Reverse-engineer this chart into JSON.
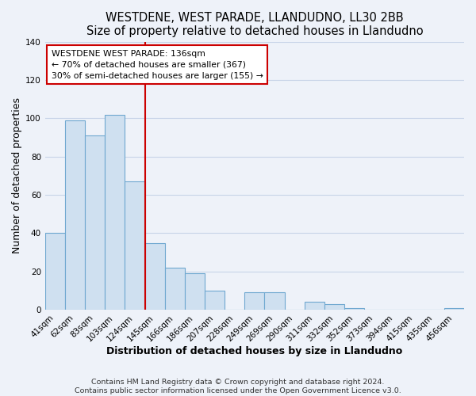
{
  "title": "WESTDENE, WEST PARADE, LLANDUDNO, LL30 2BB",
  "subtitle": "Size of property relative to detached houses in Llandudno",
  "xlabel": "Distribution of detached houses by size in Llandudno",
  "ylabel": "Number of detached properties",
  "bar_labels": [
    "41sqm",
    "62sqm",
    "83sqm",
    "103sqm",
    "124sqm",
    "145sqm",
    "166sqm",
    "186sqm",
    "207sqm",
    "228sqm",
    "249sqm",
    "269sqm",
    "290sqm",
    "311sqm",
    "332sqm",
    "352sqm",
    "373sqm",
    "394sqm",
    "415sqm",
    "435sqm",
    "456sqm"
  ],
  "bar_values": [
    40,
    99,
    91,
    102,
    67,
    35,
    22,
    19,
    10,
    0,
    9,
    9,
    0,
    4,
    3,
    1,
    0,
    0,
    0,
    0,
    1
  ],
  "bar_color": "#cfe0f0",
  "bar_edge_color": "#6fa8d0",
  "vline_x": 5.0,
  "vline_color": "#cc0000",
  "annotation_title": "WESTDENE WEST PARADE: 136sqm",
  "annotation_line1": "← 70% of detached houses are smaller (367)",
  "annotation_line2": "30% of semi-detached houses are larger (155) →",
  "annotation_box_facecolor": "#ffffff",
  "annotation_box_edgecolor": "#cc0000",
  "ylim": [
    0,
    140
  ],
  "yticks": [
    0,
    20,
    40,
    60,
    80,
    100,
    120,
    140
  ],
  "footer_line1": "Contains HM Land Registry data © Crown copyright and database right 2024.",
  "footer_line2": "Contains public sector information licensed under the Open Government Licence v3.0.",
  "background_color": "#eef2f9",
  "grid_color": "#c8d4e8",
  "title_fontsize": 10.5,
  "axis_label_fontsize": 9,
  "tick_fontsize": 7.5,
  "footer_fontsize": 6.8,
  "ann_fontsize": 7.8
}
